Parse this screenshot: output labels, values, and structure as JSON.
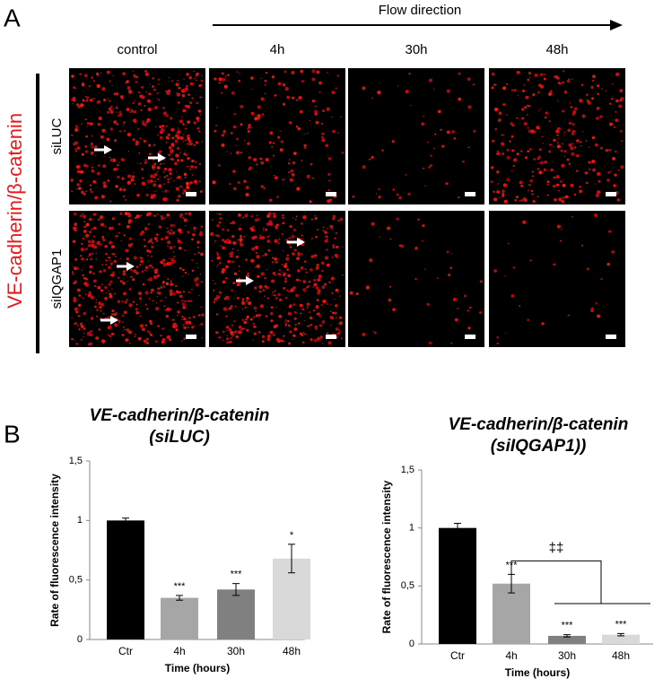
{
  "panel_a": {
    "label": "A",
    "flow_label": "Flow direction",
    "marker_label": "VE-cadherin/β-catenin",
    "columns": [
      "control",
      "4h",
      "30h",
      "48h"
    ],
    "rows": [
      "siLUC",
      "siIQGAP1"
    ]
  },
  "panel_b": {
    "label": "B"
  },
  "chart_data": [
    {
      "type": "bar",
      "title": "VE-cadherin/β-catenin",
      "subtitle": "(siLUC)",
      "y_label": "Rate of fluorescence intensity",
      "x_label": "Time (hours)",
      "categories": [
        "Ctr",
        "4h",
        "30h",
        "48h"
      ],
      "values": [
        1,
        0.35,
        0.42,
        0.68
      ],
      "errors": [
        0.02,
        0.02,
        0.05,
        0.12
      ],
      "colors": [
        "#000000",
        "#a6a6a6",
        "#808080",
        "#d9d9d9"
      ],
      "annotations": [
        null,
        "***",
        "***",
        "*"
      ],
      "ylim": [
        0,
        1.5
      ],
      "yticks": [
        0,
        {
          "value": 0.5,
          "label": "0,5"
        },
        1,
        {
          "value": 1.5,
          "label": "1,5"
        }
      ]
    },
    {
      "type": "bar",
      "title": "VE-cadherin/β-catenin",
      "subtitle": "(siIQGAP1))",
      "y_label": "Rate of fluorescence intensity",
      "x_label": "Time (hours)",
      "categories": [
        "Ctr",
        "4h",
        "30h",
        "48h"
      ],
      "values": [
        1,
        0.52,
        0.07,
        0.08
      ],
      "errors": [
        0.04,
        0.08,
        0.01,
        0.01
      ],
      "colors": [
        "#000000",
        "#a6a6a6",
        "#808080",
        "#d9d9d9"
      ],
      "annotations": [
        null,
        "***",
        "***",
        "***"
      ],
      "bracket_label": "‡‡",
      "ylim": [
        0,
        1.5
      ],
      "yticks": [
        0,
        {
          "value": 0.5,
          "label": "0,5"
        },
        1,
        {
          "value": 1.5,
          "label": "1,5"
        }
      ]
    }
  ]
}
